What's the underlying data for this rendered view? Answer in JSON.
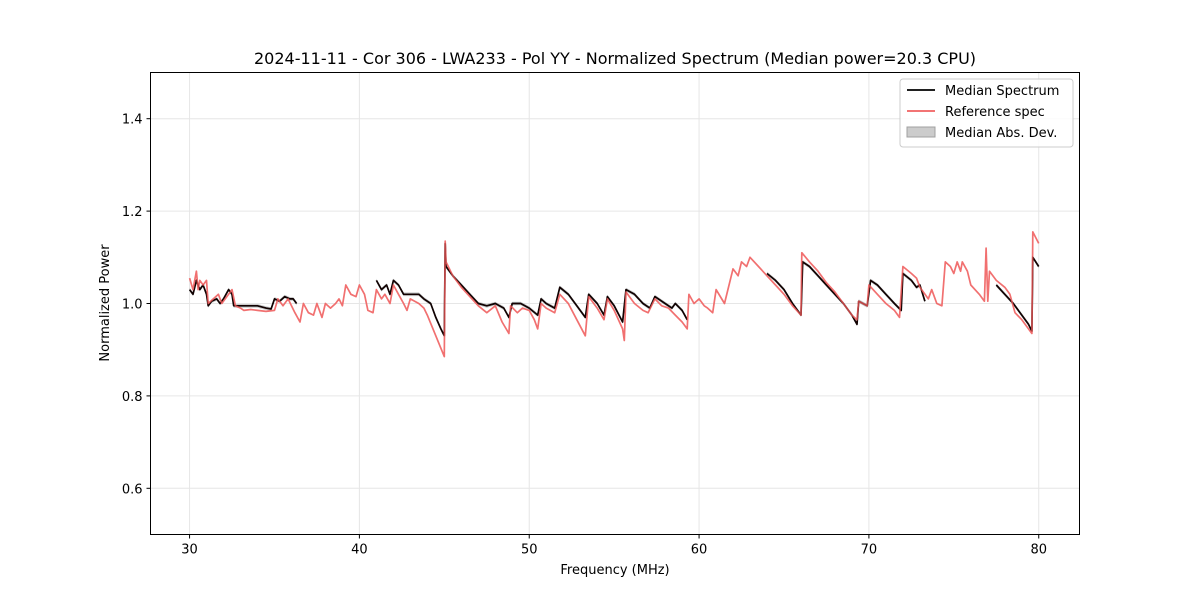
{
  "chart_data": {
    "type": "line",
    "title": "2024-11-11 - Cor 306 - LWA233 - Pol YY - Normalized Spectrum (Median power=20.3 CPU)",
    "xlabel": "Frequency (MHz)",
    "ylabel": "Normalized Power",
    "xlim": [
      27.7,
      82.4
    ],
    "ylim": [
      0.5,
      1.5
    ],
    "xticks": [
      30,
      40,
      50,
      60,
      70,
      80
    ],
    "yticks": [
      0.6,
      0.8,
      1.0,
      1.2,
      1.4
    ],
    "xtick_labels": [
      "30",
      "40",
      "50",
      "60",
      "70",
      "80"
    ],
    "ytick_labels": [
      "0.6",
      "0.8",
      "1.0",
      "1.2",
      "1.4"
    ],
    "grid": true,
    "legend_position": "top-right",
    "series": [
      {
        "name": "Median Spectrum",
        "color": "#000000",
        "segments": [
          [
            [
              30.0,
              1.03
            ],
            [
              30.2,
              1.02
            ],
            [
              30.4,
              1.05
            ],
            [
              30.6,
              1.03
            ],
            [
              30.8,
              1.04
            ],
            [
              31.0,
              1.02
            ],
            [
              31.1,
              0.995
            ],
            [
              31.3,
              1.005
            ],
            [
              31.6,
              1.01
            ],
            [
              31.8,
              1.0
            ],
            [
              32.0,
              1.01
            ],
            [
              32.3,
              1.03
            ],
            [
              32.5,
              1.02
            ],
            [
              32.6,
              0.995
            ],
            [
              33.0,
              0.995
            ],
            [
              33.5,
              0.995
            ],
            [
              34.0,
              0.995
            ],
            [
              34.5,
              0.99
            ],
            [
              34.8,
              0.988
            ],
            [
              35.0,
              1.01
            ],
            [
              35.3,
              1.005
            ],
            [
              35.6,
              1.015
            ],
            [
              35.9,
              1.01
            ],
            [
              36.1,
              1.01
            ],
            [
              36.3,
              1.0
            ]
          ],
          [
            [
              41.0,
              1.05
            ],
            [
              41.3,
              1.03
            ],
            [
              41.6,
              1.04
            ],
            [
              41.8,
              1.02
            ],
            [
              42.0,
              1.05
            ],
            [
              42.3,
              1.04
            ],
            [
              42.6,
              1.02
            ],
            [
              43.0,
              1.02
            ],
            [
              43.5,
              1.02
            ],
            [
              43.8,
              1.01
            ],
            [
              44.2,
              1.0
            ],
            [
              44.5,
              0.97
            ],
            [
              44.8,
              0.945
            ],
            [
              45.0,
              0.93
            ],
            [
              45.05,
              1.13
            ],
            [
              45.1,
              1.08
            ],
            [
              45.5,
              1.06
            ],
            [
              46.0,
              1.04
            ],
            [
              46.5,
              1.02
            ],
            [
              47.0,
              1.0
            ],
            [
              47.5,
              0.995
            ],
            [
              48.0,
              1.0
            ],
            [
              48.5,
              0.99
            ],
            [
              48.8,
              0.97
            ],
            [
              49.0,
              1.0
            ],
            [
              49.5,
              1.0
            ],
            [
              50.0,
              0.99
            ],
            [
              50.5,
              0.975
            ],
            [
              50.7,
              1.01
            ],
            [
              51.0,
              1.0
            ],
            [
              51.5,
              0.99
            ],
            [
              51.8,
              1.035
            ],
            [
              52.3,
              1.02
            ],
            [
              52.8,
              0.995
            ],
            [
              53.3,
              0.97
            ],
            [
              53.5,
              1.02
            ],
            [
              54.0,
              1.0
            ],
            [
              54.4,
              0.975
            ],
            [
              54.6,
              1.015
            ],
            [
              55.0,
              0.995
            ],
            [
              55.5,
              0.96
            ],
            [
              55.7,
              1.03
            ],
            [
              56.2,
              1.02
            ],
            [
              56.7,
              1.0
            ],
            [
              57.1,
              0.99
            ],
            [
              57.4,
              1.015
            ],
            [
              58.0,
              1.0
            ],
            [
              58.4,
              0.99
            ],
            [
              58.6,
              1.0
            ],
            [
              59.0,
              0.985
            ],
            [
              59.3,
              0.965
            ]
          ],
          [
            [
              64.0,
              1.065
            ],
            [
              64.5,
              1.05
            ],
            [
              65.0,
              1.03
            ],
            [
              65.5,
              1.0
            ],
            [
              66.0,
              0.975
            ],
            [
              66.1,
              1.09
            ],
            [
              66.5,
              1.08
            ],
            [
              67.0,
              1.06
            ],
            [
              67.5,
              1.04
            ],
            [
              68.0,
              1.02
            ],
            [
              68.5,
              1.0
            ],
            [
              69.0,
              0.975
            ],
            [
              69.3,
              0.955
            ],
            [
              69.4,
              1.005
            ],
            [
              69.9,
              0.995
            ],
            [
              70.1,
              1.05
            ],
            [
              70.5,
              1.04
            ],
            [
              71.0,
              1.02
            ],
            [
              71.5,
              1.0
            ],
            [
              71.9,
              0.985
            ],
            [
              72.0,
              1.065
            ],
            [
              72.5,
              1.05
            ],
            [
              72.8,
              1.035
            ],
            [
              73.0,
              1.04
            ],
            [
              73.3,
              1.005
            ]
          ],
          [
            [
              77.5,
              1.04
            ],
            [
              78.0,
              1.02
            ],
            [
              78.5,
              1.0
            ],
            [
              79.0,
              0.975
            ],
            [
              79.4,
              0.955
            ],
            [
              79.6,
              0.94
            ],
            [
              79.65,
              1.1
            ],
            [
              80.0,
              1.08
            ]
          ]
        ]
      },
      {
        "name": "Reference spec",
        "color": "#f06060",
        "segments": [
          [
            [
              30.0,
              1.055
            ],
            [
              30.2,
              1.03
            ],
            [
              30.4,
              1.07
            ],
            [
              30.5,
              1.03
            ],
            [
              30.6,
              1.05
            ],
            [
              30.8,
              1.04
            ],
            [
              31.0,
              1.05
            ],
            [
              31.1,
              1.0
            ],
            [
              31.4,
              1.01
            ],
            [
              31.7,
              1.02
            ],
            [
              31.9,
              1.0
            ],
            [
              32.3,
              1.02
            ],
            [
              32.5,
              1.03
            ],
            [
              32.7,
              0.995
            ],
            [
              33.0,
              0.99
            ],
            [
              33.2,
              0.985
            ],
            [
              33.6,
              0.987
            ],
            [
              34.0,
              0.985
            ],
            [
              34.5,
              0.983
            ],
            [
              35.0,
              0.985
            ],
            [
              35.2,
              1.01
            ],
            [
              35.5,
              0.995
            ],
            [
              35.8,
              1.01
            ],
            [
              36.2,
              0.98
            ],
            [
              36.5,
              0.96
            ],
            [
              36.7,
              1.0
            ],
            [
              37.0,
              0.98
            ],
            [
              37.3,
              0.975
            ],
            [
              37.5,
              1.0
            ],
            [
              37.8,
              0.97
            ],
            [
              38.0,
              1.0
            ],
            [
              38.3,
              0.99
            ],
            [
              38.6,
              1.0
            ],
            [
              38.8,
              1.01
            ],
            [
              39.0,
              0.995
            ],
            [
              39.2,
              1.04
            ],
            [
              39.5,
              1.02
            ],
            [
              39.8,
              1.015
            ],
            [
              40.0,
              1.04
            ],
            [
              40.3,
              1.02
            ],
            [
              40.5,
              0.985
            ],
            [
              40.8,
              0.98
            ],
            [
              41.0,
              1.03
            ],
            [
              41.3,
              1.01
            ],
            [
              41.5,
              1.02
            ],
            [
              41.8,
              1.0
            ],
            [
              42.0,
              1.04
            ],
            [
              42.3,
              1.02
            ],
            [
              42.6,
              1.0
            ],
            [
              42.8,
              0.985
            ],
            [
              43.0,
              1.01
            ],
            [
              43.5,
              1.0
            ],
            [
              43.8,
              0.99
            ],
            [
              44.0,
              0.975
            ],
            [
              44.5,
              0.93
            ],
            [
              45.0,
              0.885
            ],
            [
              45.05,
              1.135
            ],
            [
              45.1,
              1.09
            ],
            [
              45.5,
              1.06
            ],
            [
              46.0,
              1.035
            ],
            [
              46.5,
              1.015
            ],
            [
              47.0,
              0.995
            ],
            [
              47.5,
              0.98
            ],
            [
              48.0,
              0.995
            ],
            [
              48.4,
              0.96
            ],
            [
              48.8,
              0.935
            ],
            [
              48.9,
              0.995
            ],
            [
              49.3,
              0.98
            ],
            [
              49.6,
              0.99
            ],
            [
              50.0,
              0.985
            ],
            [
              50.3,
              0.965
            ],
            [
              50.5,
              0.945
            ],
            [
              50.7,
              1.0
            ],
            [
              51.0,
              0.99
            ],
            [
              51.5,
              0.98
            ],
            [
              51.8,
              1.02
            ],
            [
              52.3,
              1.0
            ],
            [
              52.8,
              0.965
            ],
            [
              53.3,
              0.93
            ],
            [
              53.5,
              1.015
            ],
            [
              54.0,
              0.99
            ],
            [
              54.4,
              0.965
            ],
            [
              54.6,
              1.01
            ],
            [
              55.0,
              0.985
            ],
            [
              55.5,
              0.945
            ],
            [
              55.6,
              0.92
            ],
            [
              55.7,
              1.025
            ],
            [
              56.2,
              1.0
            ],
            [
              56.7,
              0.985
            ],
            [
              57.0,
              0.98
            ],
            [
              57.4,
              1.01
            ],
            [
              57.8,
              0.995
            ],
            [
              58.2,
              0.99
            ],
            [
              58.6,
              0.975
            ],
            [
              59.0,
              0.96
            ],
            [
              59.3,
              0.945
            ],
            [
              59.4,
              1.02
            ],
            [
              59.7,
              1.0
            ],
            [
              60.0,
              1.01
            ],
            [
              60.3,
              0.995
            ],
            [
              60.5,
              0.99
            ],
            [
              60.8,
              0.98
            ],
            [
              61.0,
              1.03
            ],
            [
              61.5,
              1.0
            ],
            [
              62.0,
              1.075
            ],
            [
              62.3,
              1.06
            ],
            [
              62.5,
              1.09
            ],
            [
              62.8,
              1.08
            ],
            [
              63.0,
              1.1
            ],
            [
              63.5,
              1.08
            ],
            [
              64.0,
              1.06
            ],
            [
              64.5,
              1.04
            ],
            [
              65.0,
              1.02
            ],
            [
              65.5,
              0.995
            ],
            [
              66.0,
              0.975
            ],
            [
              66.05,
              1.11
            ],
            [
              66.5,
              1.09
            ],
            [
              67.0,
              1.07
            ],
            [
              67.5,
              1.045
            ],
            [
              68.0,
              1.025
            ],
            [
              68.5,
              1.0
            ],
            [
              69.0,
              0.975
            ],
            [
              69.3,
              0.965
            ],
            [
              69.4,
              1.005
            ],
            [
              69.9,
              0.995
            ],
            [
              70.0,
              1.04
            ],
            [
              70.5,
              1.02
            ],
            [
              71.0,
              1.0
            ],
            [
              71.5,
              0.985
            ],
            [
              71.8,
              0.97
            ],
            [
              72.0,
              1.08
            ],
            [
              72.5,
              1.065
            ],
            [
              72.8,
              1.055
            ],
            [
              73.0,
              1.035
            ],
            [
              73.5,
              1.01
            ],
            [
              73.7,
              1.03
            ],
            [
              74.0,
              1.0
            ],
            [
              74.3,
              0.995
            ],
            [
              74.5,
              1.09
            ],
            [
              74.8,
              1.08
            ],
            [
              75.0,
              1.065
            ],
            [
              75.2,
              1.09
            ],
            [
              75.4,
              1.07
            ],
            [
              75.5,
              1.09
            ],
            [
              75.8,
              1.07
            ],
            [
              76.0,
              1.04
            ],
            [
              76.5,
              1.02
            ],
            [
              76.8,
              1.005
            ],
            [
              76.9,
              1.12
            ],
            [
              77.0,
              1.005
            ],
            [
              77.1,
              1.07
            ],
            [
              77.5,
              1.05
            ],
            [
              78.0,
              1.035
            ],
            [
              78.3,
              1.02
            ],
            [
              78.6,
              0.98
            ],
            [
              79.0,
              0.965
            ],
            [
              79.4,
              0.945
            ],
            [
              79.6,
              0.935
            ],
            [
              79.65,
              1.155
            ],
            [
              80.0,
              1.13
            ]
          ]
        ]
      }
    ],
    "band": {
      "name": "Median Abs. Dev.",
      "follows_series": "Median Spectrum",
      "half_width": 0.004,
      "color": "#a0a0a0"
    }
  },
  "legend": {
    "items": [
      {
        "label": "Median Spectrum",
        "kind": "line",
        "color": "#000000"
      },
      {
        "label": "Reference spec",
        "kind": "line",
        "color": "#f06060"
      },
      {
        "label": "Median Abs. Dev.",
        "kind": "patch",
        "color": "#cccccc"
      }
    ]
  }
}
